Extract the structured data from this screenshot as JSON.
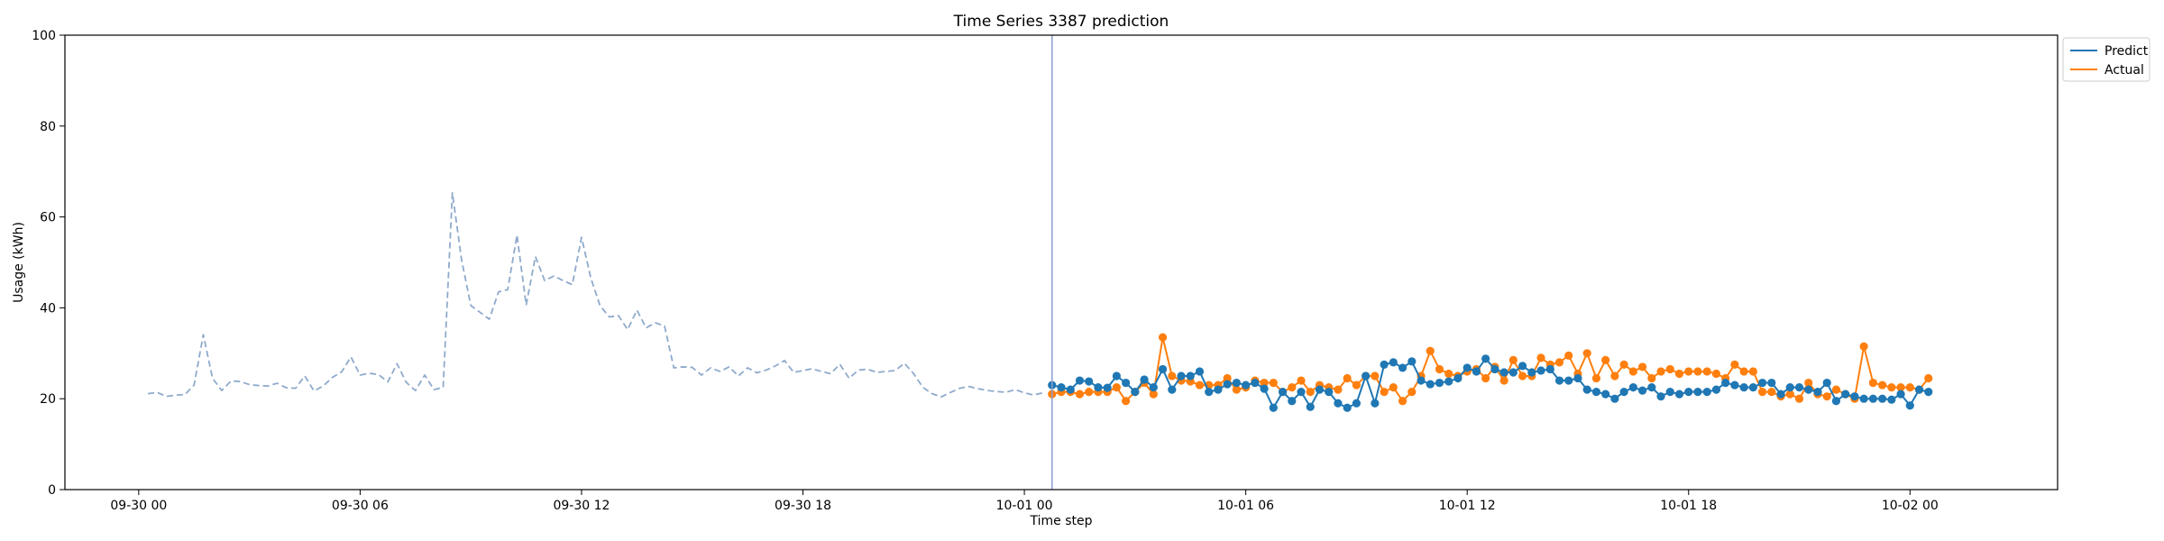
{
  "chart_data": {
    "type": "line",
    "title": "Time Series 3387 prediction",
    "xlabel": "Time step",
    "ylabel": "Usage (kWh)",
    "ylim": [
      0,
      100
    ],
    "xlim": [
      "2023-09-29T22:00",
      "2023-10-02T04:00"
    ],
    "yticks": [
      0,
      20,
      40,
      60,
      80,
      100
    ],
    "xticks": [
      {
        "at": "2023-09-30T00:00",
        "label": "09-30 00"
      },
      {
        "at": "2023-09-30T06:00",
        "label": "09-30 06"
      },
      {
        "at": "2023-09-30T12:00",
        "label": "09-30 12"
      },
      {
        "at": "2023-09-30T18:00",
        "label": "09-30 18"
      },
      {
        "at": "2023-10-01T00:00",
        "label": "10-01 00"
      },
      {
        "at": "2023-10-01T06:00",
        "label": "10-01 06"
      },
      {
        "at": "2023-10-01T12:00",
        "label": "10-01 12"
      },
      {
        "at": "2023-10-01T18:00",
        "label": "10-01 18"
      },
      {
        "at": "2023-10-02T00:00",
        "label": "10-02 00"
      }
    ],
    "grid": false,
    "legend_position": "outside-top-right",
    "forecast_start": "2023-10-01T00:45",
    "series": [
      {
        "key": "history",
        "color": "#8faacc",
        "dashed": true,
        "start": "2023-09-30T00:15",
        "step_minutes": 15,
        "values": [
          21.1,
          21.4,
          20.5,
          20.8,
          20.9,
          23.0,
          34.1,
          24.5,
          21.8,
          23.9,
          23.8,
          23.1,
          22.9,
          22.8,
          23.4,
          22.4,
          22.3,
          25.0,
          21.7,
          22.8,
          24.7,
          25.9,
          29.2,
          25.2,
          25.6,
          25.3,
          23.7,
          27.7,
          23.6,
          21.8,
          25.2,
          22.0,
          22.5,
          65.3,
          50.5,
          40.5,
          39.0,
          37.5,
          43.5,
          44.0,
          56.0,
          40.6,
          51.3,
          46.0,
          47.0,
          46.0,
          45.1,
          55.5,
          46.6,
          40.5,
          38.0,
          38.3,
          35.2,
          39.5,
          35.6,
          36.7,
          36.0,
          26.8,
          27.0,
          26.9,
          25.2,
          26.8,
          26.0,
          27.0,
          25.0,
          26.8,
          25.7,
          26.3,
          27.2,
          28.4,
          25.8,
          26.2,
          26.6,
          26.0,
          25.5,
          27.6,
          24.5,
          26.3,
          26.5,
          25.8,
          26.0,
          26.2,
          27.8,
          25.5,
          22.5,
          21.1,
          20.4,
          21.4,
          22.3,
          22.7,
          22.2,
          21.8,
          21.6,
          21.4,
          22.0,
          21.3,
          20.8,
          21.3
        ]
      },
      {
        "key": "predict",
        "name": "Predict",
        "color": "#1f77b4",
        "markers": true,
        "start": "2023-10-01T00:45",
        "step_minutes": 15,
        "values": [
          23.0,
          22.5,
          22.0,
          24.0,
          23.8,
          22.5,
          22.4,
          25.0,
          23.5,
          21.5,
          24.2,
          22.5,
          26.5,
          22.0,
          25.0,
          25.0,
          26.0,
          21.5,
          22.0,
          23.2,
          23.5,
          23.0,
          23.5,
          22.2,
          18.0,
          21.5,
          19.5,
          21.5,
          18.2,
          22.0,
          21.5,
          19.0,
          18.0,
          19.0,
          25.0,
          19.0,
          27.5,
          28.0,
          26.8,
          28.2,
          24.0,
          23.2,
          23.5,
          23.8,
          24.5,
          26.8,
          26.0,
          28.8,
          26.5,
          25.8,
          25.8,
          27.2,
          25.8,
          26.2,
          26.5,
          24.0,
          24.0,
          24.5,
          22.0,
          21.5,
          21.0,
          20.0,
          21.5,
          22.5,
          21.8,
          22.5,
          20.5,
          21.5,
          21.0,
          21.5,
          21.5,
          21.5,
          22.0,
          23.5,
          23.0,
          22.5,
          22.5,
          23.5,
          23.5,
          21.0,
          22.5,
          22.5,
          22.0,
          21.5,
          23.5,
          19.5,
          21.0,
          20.5,
          20.0,
          20.0,
          20.0,
          19.8,
          21.0,
          18.5,
          22.0,
          21.5
        ]
      },
      {
        "key": "actual",
        "name": "Actual",
        "color": "#ff7f0e",
        "markers": true,
        "start": "2023-10-01T00:45",
        "step_minutes": 15,
        "values": [
          21.0,
          21.5,
          21.5,
          21.0,
          21.5,
          21.5,
          21.5,
          22.5,
          19.5,
          21.5,
          23.5,
          21.0,
          33.5,
          25.0,
          24.0,
          23.8,
          23.0,
          23.0,
          23.0,
          24.5,
          22.0,
          22.5,
          24.0,
          23.5,
          23.5,
          21.5,
          22.5,
          24.0,
          21.5,
          23.0,
          22.5,
          22.0,
          24.5,
          23.0,
          25.0,
          25.0,
          21.5,
          22.5,
          19.5,
          21.5,
          25.0,
          30.5,
          26.5,
          25.5,
          25.0,
          26.0,
          26.5,
          24.5,
          27.0,
          24.0,
          28.5,
          25.0,
          25.0,
          29.0,
          27.5,
          28.0,
          29.5,
          25.5,
          30.0,
          24.5,
          28.5,
          25.0,
          27.5,
          26.0,
          27.0,
          24.5,
          26.0,
          26.5,
          25.5,
          26.0,
          26.0,
          26.0,
          25.5,
          24.5,
          27.5,
          26.0,
          26.0,
          21.5,
          21.5,
          20.5,
          21.0,
          20.0,
          23.5,
          21.0,
          20.5,
          22.0,
          21.0,
          20.0,
          31.5,
          23.5,
          23.0,
          22.5,
          22.5,
          22.5,
          22.0,
          24.5
        ]
      }
    ]
  }
}
